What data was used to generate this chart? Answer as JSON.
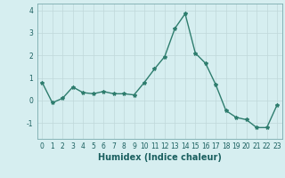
{
  "x": [
    0,
    1,
    2,
    3,
    4,
    5,
    6,
    7,
    8,
    9,
    10,
    11,
    12,
    13,
    14,
    15,
    16,
    17,
    18,
    19,
    20,
    21,
    22,
    23
  ],
  "y": [
    0.8,
    -0.1,
    0.1,
    0.6,
    0.35,
    0.3,
    0.4,
    0.3,
    0.3,
    0.25,
    0.8,
    1.4,
    1.95,
    3.2,
    3.85,
    2.1,
    1.65,
    0.7,
    -0.45,
    -0.75,
    -0.85,
    -1.2,
    -1.2,
    -0.2
  ],
  "line_color": "#2e7d6e",
  "marker": "*",
  "marker_size": 3,
  "linewidth": 1.0,
  "xlabel": "Humidex (Indice chaleur)",
  "xlim": [
    -0.5,
    23.5
  ],
  "ylim": [
    -1.7,
    4.3
  ],
  "yticks": [
    -1,
    0,
    1,
    2,
    3,
    4
  ],
  "xticks": [
    0,
    1,
    2,
    3,
    4,
    5,
    6,
    7,
    8,
    9,
    10,
    11,
    12,
    13,
    14,
    15,
    16,
    17,
    18,
    19,
    20,
    21,
    22,
    23
  ],
  "bg_color": "#d6eef0",
  "grid_color": "#c0d8da",
  "tick_fontsize": 5.5,
  "xlabel_fontsize": 7.0
}
